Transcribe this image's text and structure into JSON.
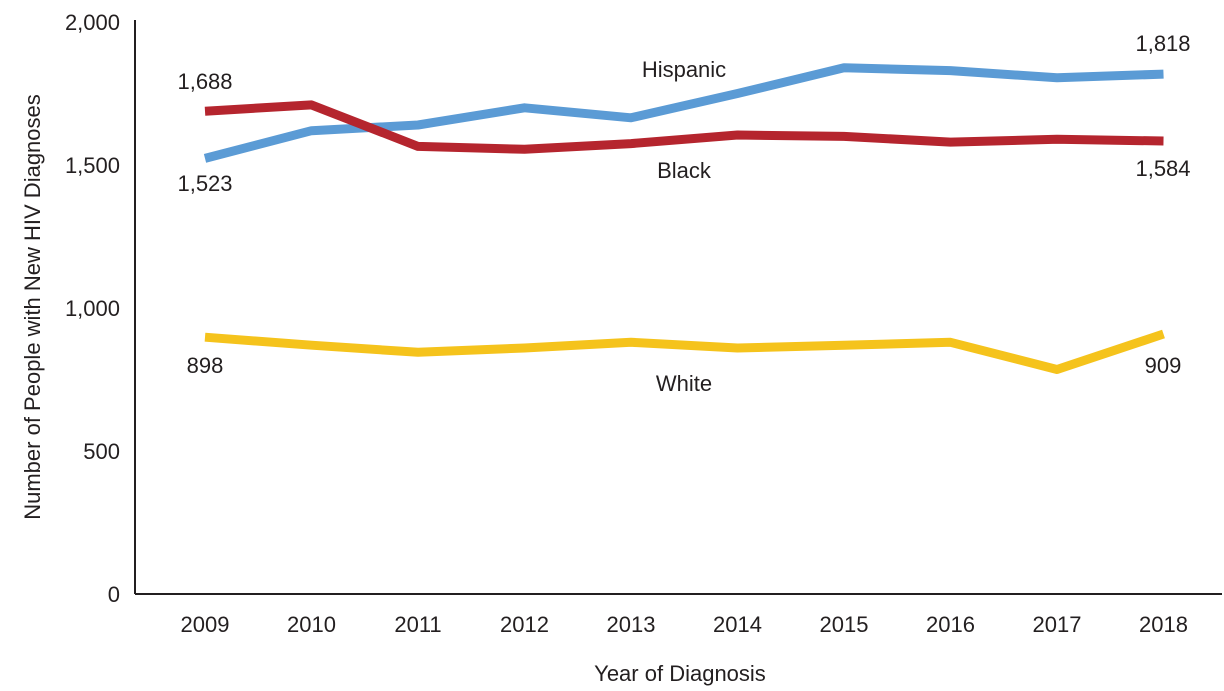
{
  "chart_data": {
    "type": "line",
    "xlabel": "Year of Diagnosis",
    "ylabel": "Number of People with New HIV Diagnoses",
    "ylim": [
      0,
      2000
    ],
    "yticks": [
      0,
      500,
      1000,
      1500,
      2000
    ],
    "ytick_labels": [
      "0",
      "500",
      "1,000",
      "1,500",
      "2,000"
    ],
    "x": [
      "2009",
      "2010",
      "2011",
      "2012",
      "2013",
      "2014",
      "2015",
      "2016",
      "2017",
      "2018"
    ],
    "grid": false,
    "legend": "none",
    "series": [
      {
        "name": "Hispanic",
        "color": "#5b9bd5",
        "values": [
          1523,
          1620,
          1640,
          1700,
          1665,
          1750,
          1840,
          1830,
          1805,
          1818
        ],
        "start_label": "1,523",
        "end_label": "1,818"
      },
      {
        "name": "Black",
        "color": "#b5252e",
        "values": [
          1688,
          1710,
          1565,
          1555,
          1575,
          1605,
          1600,
          1580,
          1590,
          1584
        ],
        "start_label": "1,688",
        "end_label": "1,584"
      },
      {
        "name": "White",
        "color": "#f5c31c",
        "values": [
          898,
          870,
          845,
          860,
          880,
          860,
          870,
          880,
          785,
          909
        ],
        "start_label": "898",
        "end_label": "909"
      }
    ]
  }
}
